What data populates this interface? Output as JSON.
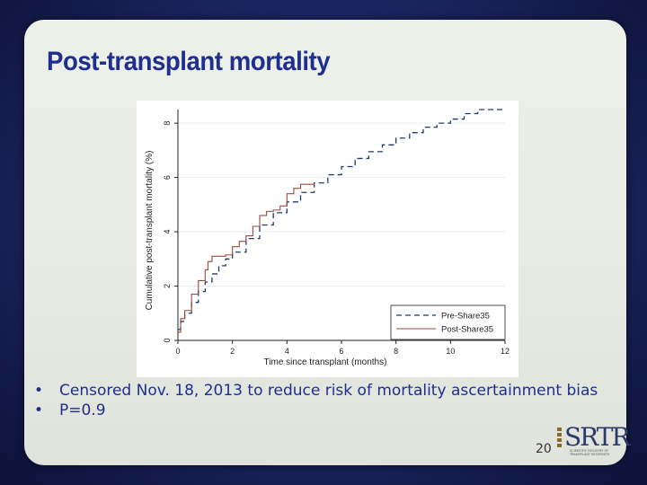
{
  "slide": {
    "title": "Post-transplant mortality",
    "bullets": [
      "Censored Nov. 18, 2013 to reduce risk of mortality ascertainment bias",
      "P=0.9"
    ],
    "page_number": "20",
    "logo": {
      "name": "SRTR",
      "tagline_1": "SCIENTIFIC REGISTRY OF",
      "tagline_2": "TRANSPLANT RECIPIENTS"
    }
  },
  "colors": {
    "title": "#1f2f8f",
    "pre_series": "#1f3a6b",
    "post_series": "#9b4a3f",
    "grid": "#e6eef2"
  },
  "chart_data": {
    "type": "line",
    "title": "",
    "xlabel": "Time since transplant (months)",
    "ylabel": "Cumulative post-transplant mortality (%)",
    "xlim": [
      0,
      12
    ],
    "ylim": [
      0,
      8.5
    ],
    "xticks": [
      "0",
      "2",
      "4",
      "6",
      "8",
      "10",
      "12"
    ],
    "yticks": [
      "0",
      "2",
      "4",
      "6",
      "8"
    ],
    "grid": true,
    "legend_position": "bottom-right",
    "series": [
      {
        "name": "Pre-Share35",
        "style": "dashed",
        "x": [
          0,
          0.1,
          0.25,
          0.5,
          0.75,
          1.0,
          1.25,
          1.5,
          1.75,
          2.0,
          2.5,
          3.0,
          3.5,
          4.0,
          4.5,
          5.0,
          5.5,
          6.0,
          6.5,
          7.0,
          7.5,
          8.0,
          8.5,
          9.0,
          9.5,
          10.0,
          10.5,
          11.0,
          11.5,
          12.0
        ],
        "y": [
          0.4,
          0.7,
          1.0,
          1.4,
          1.8,
          2.15,
          2.45,
          2.75,
          3.0,
          3.25,
          3.75,
          4.25,
          4.7,
          5.1,
          5.45,
          5.8,
          6.1,
          6.4,
          6.7,
          6.95,
          7.2,
          7.45,
          7.65,
          7.85,
          8.0,
          8.15,
          8.35,
          8.5,
          8.5,
          8.5
        ]
      },
      {
        "name": "Post-Share35",
        "style": "solid",
        "x": [
          0,
          0.1,
          0.25,
          0.5,
          0.75,
          1.0,
          1.1,
          1.25,
          1.5,
          1.75,
          2.0,
          2.25,
          2.5,
          2.75,
          3.0,
          3.25,
          3.5,
          3.75,
          4.0,
          4.25,
          4.5,
          5.0
        ],
        "y": [
          0.3,
          0.8,
          1.1,
          1.7,
          2.2,
          2.6,
          2.9,
          3.1,
          3.1,
          3.15,
          3.45,
          3.65,
          3.85,
          4.2,
          4.6,
          4.75,
          4.8,
          4.95,
          5.4,
          5.6,
          5.75,
          5.8
        ]
      }
    ]
  }
}
